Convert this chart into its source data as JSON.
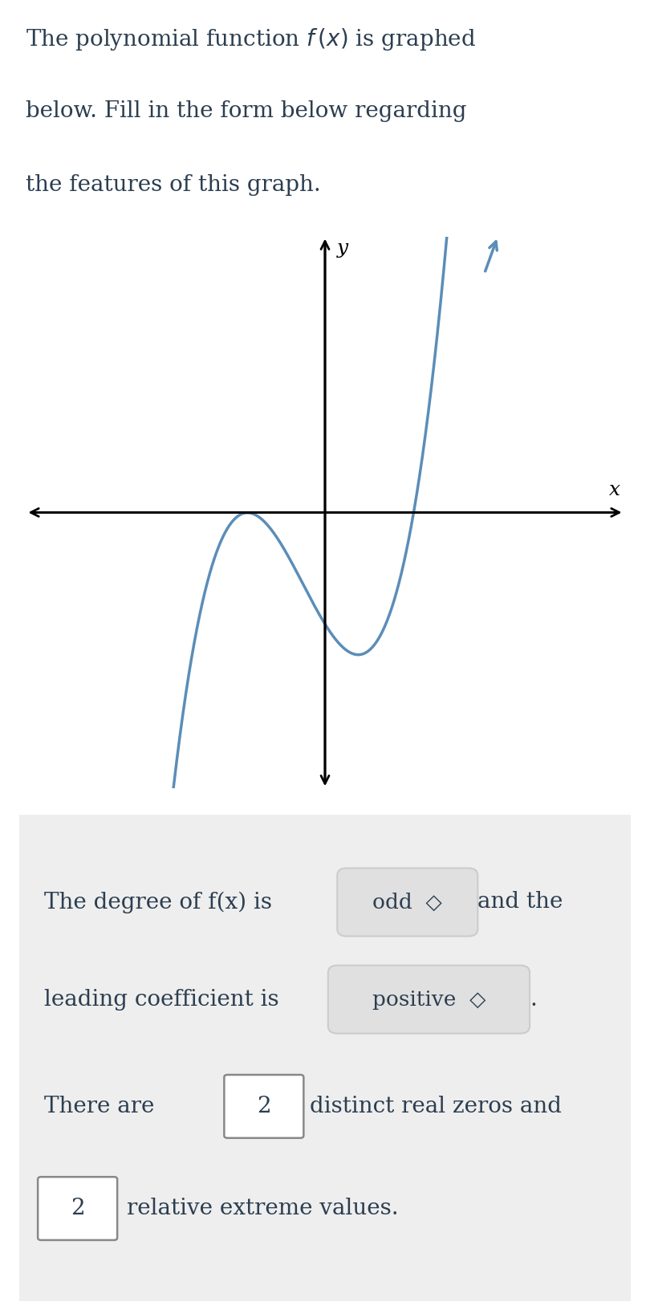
{
  "title_text_line1": "The polynomial function ",
  "title_text_line2": "below. Fill in the form below regarding",
  "title_text_line3": "the features of this graph.",
  "title_fontsize": 20,
  "curve_color": "#5b8db8",
  "axis_color": "#000000",
  "background_color": "#ffffff",
  "panel_color": "#eeeeee",
  "x_label": "x",
  "y_label": "y",
  "xlim": [
    -4.5,
    4.5
  ],
  "ylim": [
    -4.5,
    4.5
  ],
  "text_color": "#2c3e50",
  "box_border_color": "#888888",
  "pill_bg_color": "#e0e0e0",
  "fig_width": 8.1,
  "fig_height": 16.37,
  "dpi": 100
}
